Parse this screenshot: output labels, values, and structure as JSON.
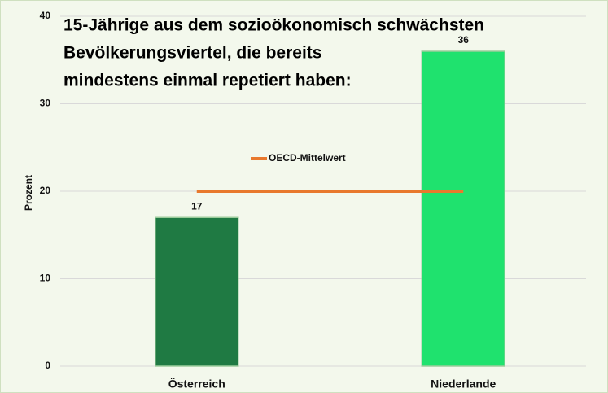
{
  "chart_data": {
    "type": "bar",
    "title": [
      "15-Jährige aus dem sozioökonomisch schwächsten",
      "Bevölkerungsviertel, die bereits",
      "mindestens einmal repetiert haben:"
    ],
    "y_label": "Prozent",
    "categories": [
      "Österreich",
      "Niederlande"
    ],
    "values": [
      17,
      36
    ],
    "colors": [
      "#1f7a43",
      "#1fe26e"
    ],
    "lines": [
      {
        "name": "OECD-Mittelwert",
        "color": "#e8792d",
        "values": [
          20,
          20
        ]
      }
    ],
    "ylim": [
      0,
      40
    ],
    "yticks": [
      0,
      10,
      20,
      30,
      40
    ],
    "grid": true
  }
}
